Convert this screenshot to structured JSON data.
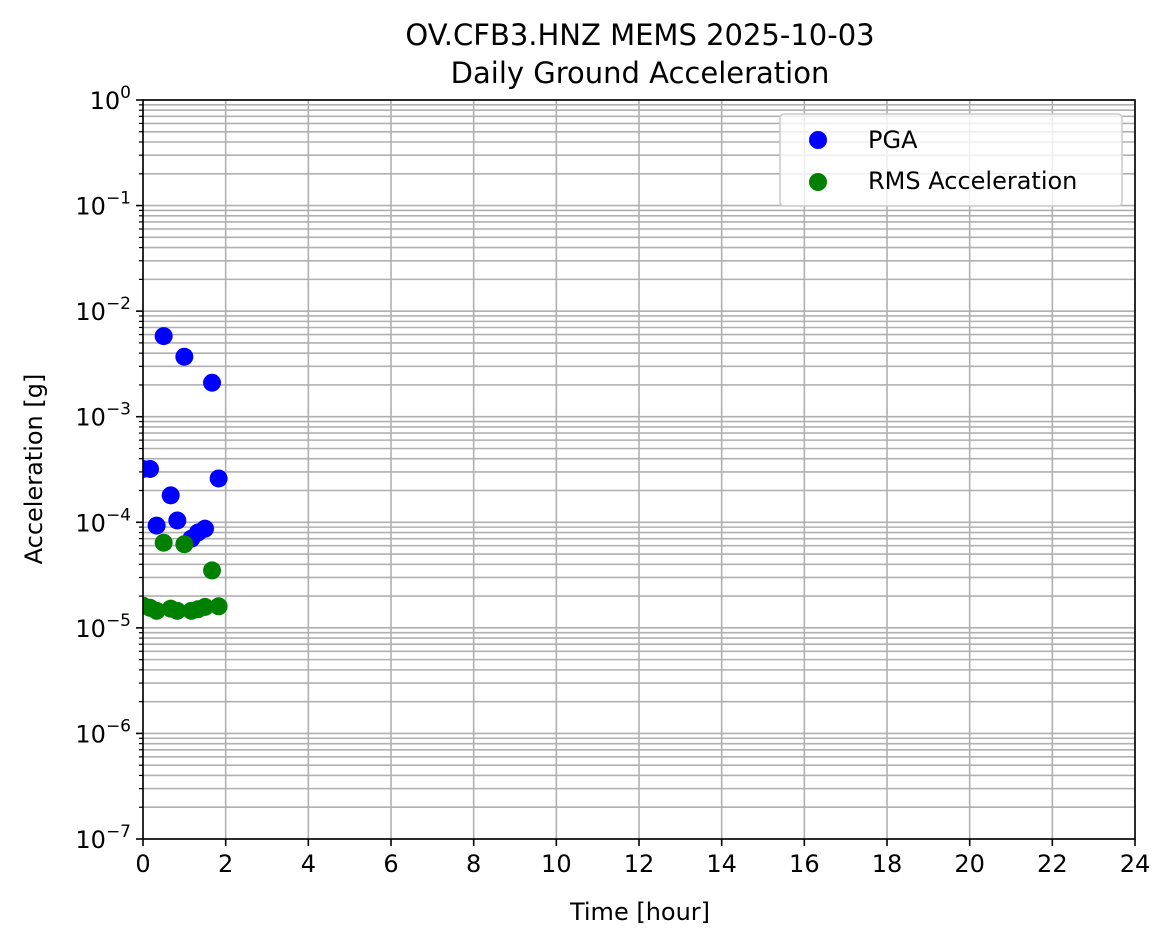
{
  "chart_data": {
    "type": "scatter",
    "title": "OV.CFB3.HNZ MEMS 2025-10-03",
    "subtitle": "Daily Ground Acceleration",
    "xlabel": "Time [hour]",
    "ylabel": "Acceleration [g]",
    "xlim": [
      0,
      24
    ],
    "ylim": [
      1e-07,
      1
    ],
    "yscale": "log",
    "grid": true,
    "legend_position": "top-right",
    "x_ticks": [
      "0",
      "2",
      "4",
      "6",
      "8",
      "10",
      "12",
      "14",
      "16",
      "18",
      "20",
      "22",
      "24"
    ],
    "y_ticks": [
      {
        "base": "10",
        "exp": "−7"
      },
      {
        "base": "10",
        "exp": "−6"
      },
      {
        "base": "10",
        "exp": "−5"
      },
      {
        "base": "10",
        "exp": "−4"
      },
      {
        "base": "10",
        "exp": "−3"
      },
      {
        "base": "10",
        "exp": "−2"
      },
      {
        "base": "10",
        "exp": "−1"
      },
      {
        "base": "10",
        "exp": "0"
      }
    ],
    "series": [
      {
        "name": "PGA",
        "color": "#0000ff",
        "x": [
          0.0,
          0.17,
          0.33,
          0.5,
          0.67,
          0.83,
          1.0,
          1.17,
          1.33,
          1.5,
          1.67,
          1.83
        ],
        "y": [
          0.00032,
          0.00032,
          9.3e-05,
          0.0058,
          0.00018,
          0.000104,
          0.0037,
          7e-05,
          8e-05,
          8.7e-05,
          0.0021,
          0.00026
        ]
      },
      {
        "name": "RMS Acceleration",
        "color": "#008000",
        "x": [
          0.0,
          0.17,
          0.33,
          0.5,
          0.67,
          0.83,
          1.0,
          1.17,
          1.33,
          1.5,
          1.67,
          1.83
        ],
        "y": [
          1.62e-05,
          1.55e-05,
          1.45e-05,
          6.4e-05,
          1.52e-05,
          1.45e-05,
          6.2e-05,
          1.45e-05,
          1.5e-05,
          1.58e-05,
          3.5e-05,
          1.6e-05
        ]
      }
    ]
  }
}
